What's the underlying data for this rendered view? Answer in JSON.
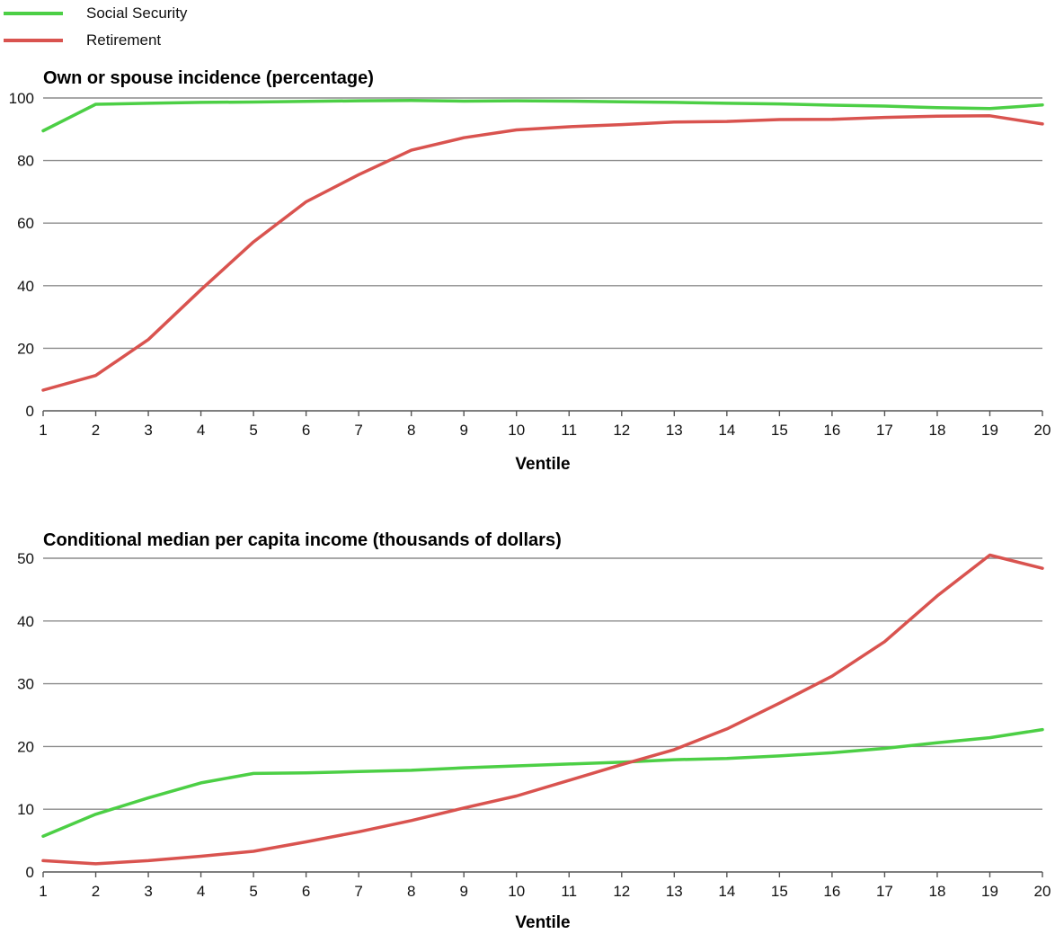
{
  "legend": {
    "items": [
      {
        "label": "Social Security",
        "color": "#4ccf45"
      },
      {
        "label": "Retirement",
        "color": "#d9534f"
      }
    ]
  },
  "chart_data": [
    {
      "type": "line",
      "title": "Own or spouse incidence (percentage)",
      "xlabel": "Ventile",
      "ylabel": "",
      "ylim": [
        0,
        100
      ],
      "yticks": [
        0,
        20,
        40,
        60,
        80,
        100
      ],
      "grid": true,
      "legend_position": "top-left",
      "x": [
        1,
        2,
        3,
        4,
        5,
        6,
        7,
        8,
        9,
        10,
        11,
        12,
        13,
        14,
        15,
        16,
        17,
        18,
        19,
        20
      ],
      "series": [
        {
          "name": "Social Security",
          "color": "#4ccf45",
          "values": [
            89.5,
            98.0,
            98.3,
            98.6,
            98.7,
            98.9,
            99.1,
            99.2,
            99.0,
            99.1,
            99.0,
            98.8,
            98.6,
            98.3,
            98.1,
            97.7,
            97.4,
            96.9,
            96.6,
            97.8
          ]
        },
        {
          "name": "Retirement",
          "color": "#d9534f",
          "values": [
            6.6,
            11.3,
            22.8,
            38.7,
            54.0,
            66.8,
            75.5,
            83.3,
            87.3,
            89.8,
            90.8,
            91.5,
            92.3,
            92.5,
            93.1,
            93.2,
            93.8,
            94.2,
            94.3,
            91.7
          ]
        }
      ]
    },
    {
      "type": "line",
      "title": "Conditional median per capita income (thousands of dollars)",
      "xlabel": "Ventile",
      "ylabel": "",
      "ylim": [
        0,
        50
      ],
      "yticks": [
        0,
        10,
        20,
        30,
        40,
        50
      ],
      "grid": true,
      "x": [
        1,
        2,
        3,
        4,
        5,
        6,
        7,
        8,
        9,
        10,
        11,
        12,
        13,
        14,
        15,
        16,
        17,
        18,
        19,
        20
      ],
      "series": [
        {
          "name": "Social Security",
          "color": "#4ccf45",
          "values": [
            5.7,
            9.2,
            11.8,
            14.2,
            15.7,
            15.8,
            16.0,
            16.2,
            16.6,
            16.9,
            17.2,
            17.5,
            17.9,
            18.1,
            18.5,
            19.0,
            19.7,
            20.6,
            21.4,
            22.7
          ]
        },
        {
          "name": "Retirement",
          "color": "#d9534f",
          "values": [
            1.8,
            1.3,
            1.8,
            2.5,
            3.3,
            4.8,
            6.4,
            8.2,
            10.2,
            12.1,
            14.6,
            17.1,
            19.5,
            22.8,
            26.9,
            31.2,
            36.7,
            44.0,
            50.5,
            48.4
          ]
        }
      ]
    }
  ]
}
